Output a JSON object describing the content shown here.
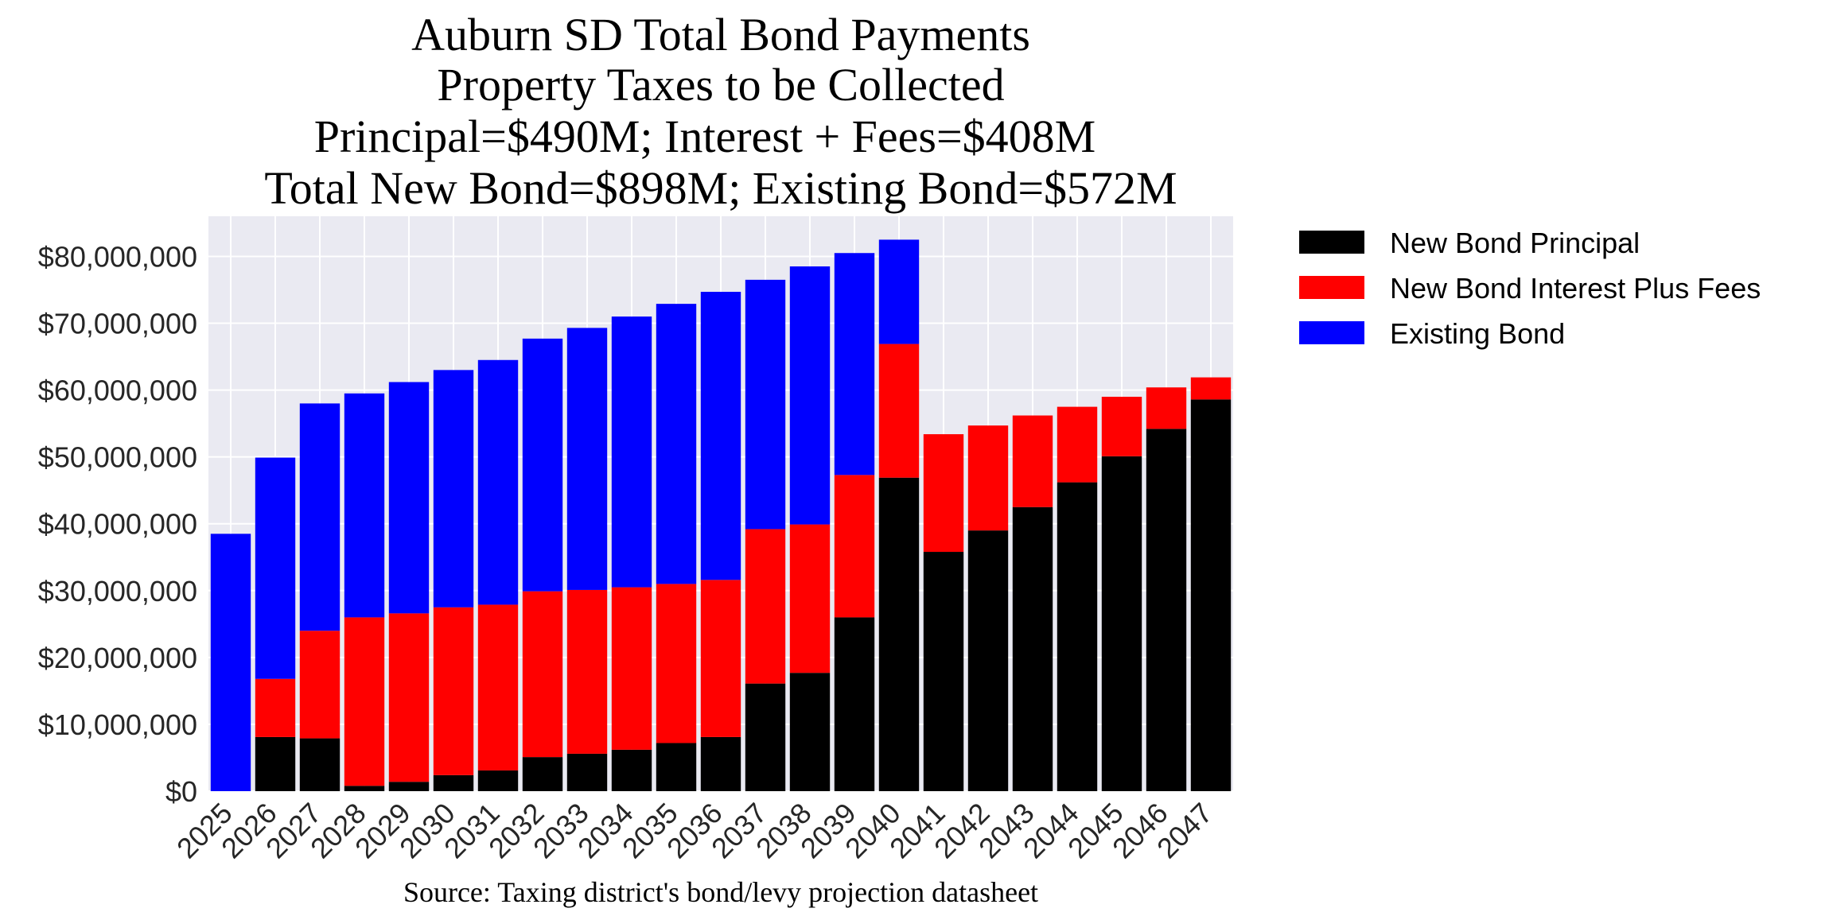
{
  "chart_data": {
    "type": "bar",
    "stacked": true,
    "title_lines": [
      "Auburn SD Total Bond Payments",
      "Property Taxes to be Collected",
      "Principal=$490M; Interest + Fees=$408M",
      "Total New Bond=$898M; Existing Bond=$572M"
    ],
    "source": "Source: Taxing district's bond/levy projection datasheet",
    "categories": [
      "2025",
      "2026",
      "2027",
      "2028",
      "2029",
      "2030",
      "2031",
      "2032",
      "2033",
      "2034",
      "2035",
      "2036",
      "2037",
      "2038",
      "2039",
      "2040",
      "2041",
      "2042",
      "2043",
      "2044",
      "2045",
      "2046",
      "2047"
    ],
    "series": [
      {
        "name": "New Bond Principal",
        "color": "#000000",
        "values": [
          0,
          8100000,
          7900000,
          800000,
          1400000,
          2400000,
          3100000,
          5100000,
          5600000,
          6200000,
          7200000,
          8100000,
          16100000,
          17700000,
          26000000,
          46900000,
          35800000,
          39000000,
          42500000,
          46200000,
          50100000,
          54200000,
          58600000
        ]
      },
      {
        "name": "New Bond Interest Plus Fees",
        "color": "#ff0000",
        "values": [
          0,
          8700000,
          16100000,
          25200000,
          25200000,
          25100000,
          24800000,
          24800000,
          24500000,
          24300000,
          23800000,
          23500000,
          23100000,
          22200000,
          21300000,
          20000000,
          17600000,
          15700000,
          13700000,
          11300000,
          8900000,
          6200000,
          3300000
        ]
      },
      {
        "name": "Existing Bond",
        "color": "#0000ff",
        "values": [
          38500000,
          33100000,
          34000000,
          33500000,
          34600000,
          35500000,
          36600000,
          37800000,
          39200000,
          40500000,
          41900000,
          43100000,
          37300000,
          38600000,
          33200000,
          15600000,
          0,
          0,
          0,
          0,
          0,
          0,
          0
        ]
      }
    ],
    "ylim": [
      0,
      86000000
    ],
    "yticks": [
      0,
      10000000,
      20000000,
      30000000,
      40000000,
      50000000,
      60000000,
      70000000,
      80000000
    ],
    "ytick_labels": [
      "$0",
      "$10,000,000",
      "$20,000,000",
      "$30,000,000",
      "$40,000,000",
      "$50,000,000",
      "$60,000,000",
      "$70,000,000",
      "$80,000,000"
    ],
    "grid": true,
    "legend_position": "outside-top-right",
    "plot_background": "#eaeaf2"
  }
}
